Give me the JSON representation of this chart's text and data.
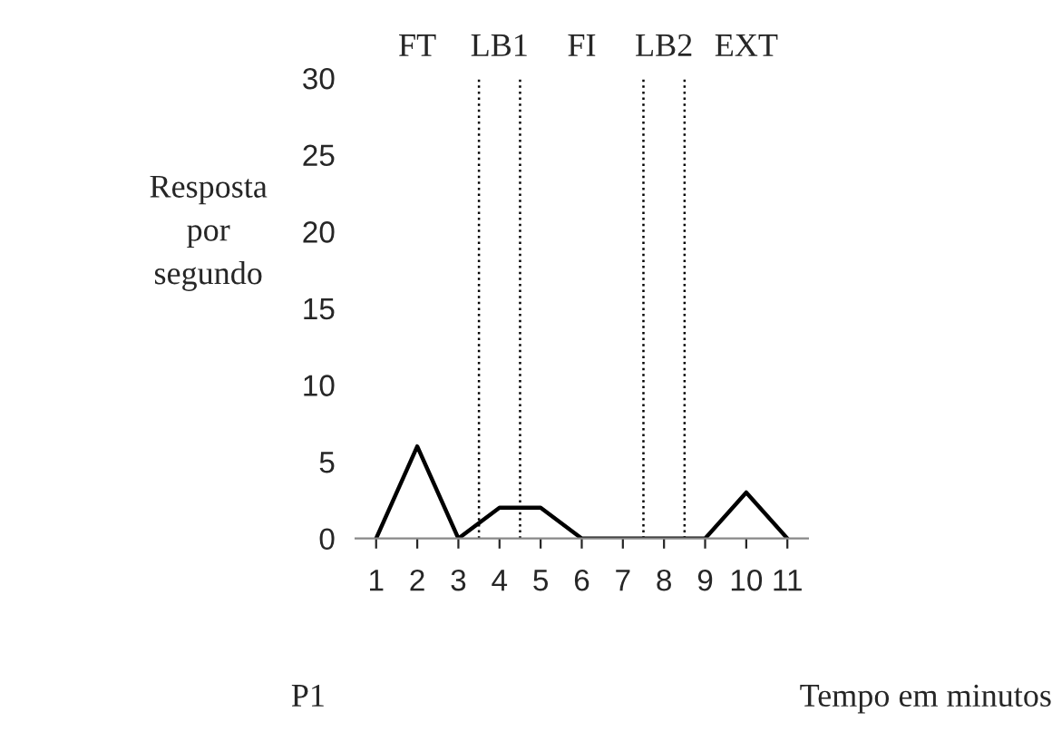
{
  "chart_data": {
    "type": "line",
    "ylabel": "Resposta\npor\nsegundo",
    "xlabel": "Tempo em minutos",
    "x": [
      1,
      2,
      3,
      4,
      5,
      6,
      7,
      8,
      9,
      10,
      11
    ],
    "series": [
      {
        "color": "#000000",
        "values": [
          0,
          6,
          0,
          2,
          2,
          0,
          0,
          0,
          0,
          3,
          0
        ]
      }
    ],
    "xlim": [
      0.5,
      11.5
    ],
    "xticks": [
      1,
      2,
      3,
      4,
      5,
      6,
      7,
      8,
      9,
      10,
      11
    ],
    "ylim": [
      0,
      30
    ],
    "yticks": [
      0,
      5,
      10,
      15,
      20,
      25,
      30
    ],
    "grid": false,
    "marker": "none",
    "line_style": "solid",
    "ref_lines": [
      {
        "axis": "x",
        "value": 3.5,
        "line_style": "dotted",
        "color": "#000000"
      },
      {
        "axis": "x",
        "value": 4.5,
        "line_style": "dotted",
        "color": "#000000"
      },
      {
        "axis": "x",
        "value": 7.5,
        "line_style": "dotted",
        "color": "#000000"
      },
      {
        "axis": "x",
        "value": 8.5,
        "line_style": "dotted",
        "color": "#000000"
      }
    ],
    "annotations": [
      "FT",
      "LB1",
      "FI",
      "LB2",
      "EXT",
      "P1"
    ]
  }
}
